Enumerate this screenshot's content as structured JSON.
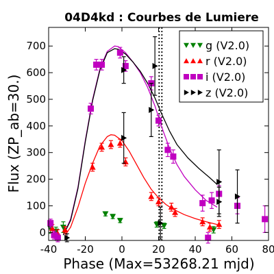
{
  "chart_data": {
    "type": "scatter",
    "title": "04D4kd : Courbes de Lumiere",
    "xlabel": "Phase (Max=53268.21 mjd)",
    "ylabel": "Flux (ZP_ab=30.)",
    "xlim": [
      -40,
      80
    ],
    "ylim": [
      -30,
      770
    ],
    "xticks": [
      -40,
      -20,
      0,
      20,
      40,
      60,
      80
    ],
    "yticks": [
      0,
      100,
      200,
      300,
      400,
      500,
      600,
      700
    ],
    "legend_position": "top-right",
    "vertical_lines": [
      {
        "x": 20.3,
        "style": "dotted",
        "color": "#000000"
      },
      {
        "x": 21.8,
        "style": "dotted",
        "color": "#000000"
      }
    ],
    "series": [
      {
        "name": "g (V2.0)",
        "marker": "triangle-down",
        "color": "#008000",
        "points": [
          {
            "x": -39,
            "y": 15,
            "err": 18
          },
          {
            "x": -36,
            "y": 5,
            "err": 15
          },
          {
            "x": -32,
            "y": 20,
            "err": 20
          },
          {
            "x": -9,
            "y": 70,
            "err": 8
          },
          {
            "x": -5,
            "y": 60,
            "err": 8
          },
          {
            "x": -1,
            "y": 45,
            "err": 8
          },
          {
            "x": 19,
            "y": 30,
            "err": 10
          },
          {
            "x": 23,
            "y": 25,
            "err": 10
          },
          {
            "x": 50,
            "y": 10,
            "err": 12
          }
        ],
        "curve": []
      },
      {
        "name": "r (V2.0)",
        "marker": "triangle-up",
        "color": "#ff0000",
        "points": [
          {
            "x": -38,
            "y": 15,
            "err": 15
          },
          {
            "x": -35,
            "y": -5,
            "err": 15
          },
          {
            "x": -31,
            "y": 10,
            "err": 12
          },
          {
            "x": -16,
            "y": 245,
            "err": 15
          },
          {
            "x": -11,
            "y": 320,
            "err": 15
          },
          {
            "x": -6,
            "y": 330,
            "err": 15
          },
          {
            "x": -1,
            "y": 335,
            "err": 15
          },
          {
            "x": 2,
            "y": 265,
            "err": 15
          },
          {
            "x": 16,
            "y": 135,
            "err": 15
          },
          {
            "x": 20,
            "y": 115,
            "err": 15
          },
          {
            "x": 27,
            "y": 95,
            "err": 15
          },
          {
            "x": 29,
            "y": 75,
            "err": 15
          },
          {
            "x": 44,
            "y": 40,
            "err": 15
          },
          {
            "x": 48,
            "y": 20,
            "err": 15
          },
          {
            "x": 53,
            "y": 30,
            "err": 15
          }
        ],
        "curve": [
          {
            "x": -31,
            "y": -10
          },
          {
            "x": -28,
            "y": 20
          },
          {
            "x": -24,
            "y": 95
          },
          {
            "x": -20,
            "y": 185
          },
          {
            "x": -16,
            "y": 260
          },
          {
            "x": -12,
            "y": 325
          },
          {
            "x": -8,
            "y": 360
          },
          {
            "x": -6,
            "y": 367
          },
          {
            "x": -4,
            "y": 365
          },
          {
            "x": 0,
            "y": 345
          },
          {
            "x": 4,
            "y": 305
          },
          {
            "x": 8,
            "y": 255
          },
          {
            "x": 12,
            "y": 205
          },
          {
            "x": 16,
            "y": 162
          },
          {
            "x": 20,
            "y": 130
          },
          {
            "x": 24,
            "y": 105
          },
          {
            "x": 28,
            "y": 87
          },
          {
            "x": 34,
            "y": 67
          },
          {
            "x": 40,
            "y": 52
          },
          {
            "x": 46,
            "y": 40
          },
          {
            "x": 52,
            "y": 30
          }
        ]
      },
      {
        "name": "i (V2.0)",
        "marker": "square",
        "color": "#c000c0",
        "points": [
          {
            "x": -39,
            "y": 35,
            "err": 15
          },
          {
            "x": -37,
            "y": -10,
            "err": 15
          },
          {
            "x": -35,
            "y": -20,
            "err": 15
          },
          {
            "x": -17,
            "y": 465,
            "err": 20
          },
          {
            "x": -14,
            "y": 630,
            "err": 20
          },
          {
            "x": -11,
            "y": 630,
            "err": 20
          },
          {
            "x": -1,
            "y": 675,
            "err": 20
          },
          {
            "x": 2,
            "y": 625,
            "err": 20
          },
          {
            "x": 16,
            "y": 560,
            "err": 25
          },
          {
            "x": 20,
            "y": 420,
            "err": 20
          },
          {
            "x": 25,
            "y": 310,
            "err": 25
          },
          {
            "x": 28,
            "y": 285,
            "err": 25
          },
          {
            "x": 44,
            "y": 110,
            "err": 30
          },
          {
            "x": 49,
            "y": 120,
            "err": 30
          },
          {
            "x": 53,
            "y": 145,
            "err": 30
          },
          {
            "x": 47,
            "y": -20,
            "err": 20
          },
          {
            "x": 63,
            "y": 100,
            "err": 30
          },
          {
            "x": 78,
            "y": 50,
            "err": 50
          }
        ],
        "curve": [
          {
            "x": -32,
            "y": -10
          },
          {
            "x": -28,
            "y": 50
          },
          {
            "x": -24,
            "y": 170
          },
          {
            "x": -20,
            "y": 345
          },
          {
            "x": -16,
            "y": 500
          },
          {
            "x": -12,
            "y": 615
          },
          {
            "x": -8,
            "y": 680
          },
          {
            "x": -4,
            "y": 700
          },
          {
            "x": -2,
            "y": 698
          },
          {
            "x": 2,
            "y": 675
          },
          {
            "x": 6,
            "y": 640
          },
          {
            "x": 10,
            "y": 600
          },
          {
            "x": 14,
            "y": 545
          },
          {
            "x": 18,
            "y": 475
          },
          {
            "x": 22,
            "y": 390
          },
          {
            "x": 26,
            "y": 315
          },
          {
            "x": 30,
            "y": 255
          },
          {
            "x": 34,
            "y": 210
          },
          {
            "x": 40,
            "y": 160
          },
          {
            "x": 46,
            "y": 120
          },
          {
            "x": 52,
            "y": 95
          }
        ]
      },
      {
        "name": "z (V2.0)",
        "marker": "triangle-right",
        "color": "#000000",
        "points": [
          {
            "x": -30,
            "y": -20,
            "err": 15
          },
          {
            "x": 1,
            "y": 355,
            "err": 95
          },
          {
            "x": 1,
            "y": 610,
            "err": 50
          },
          {
            "x": 16,
            "y": 460,
            "err": 100
          },
          {
            "x": 18,
            "y": 625,
            "err": 110
          },
          {
            "x": 21,
            "y": 35,
            "err": 60
          },
          {
            "x": 53,
            "y": 190,
            "err": 120
          },
          {
            "x": 53,
            "y": 115,
            "err": 55
          },
          {
            "x": 63,
            "y": 135,
            "err": 100
          }
        ],
        "curve": [
          {
            "x": -32,
            "y": -10
          },
          {
            "x": -28,
            "y": 45
          },
          {
            "x": -24,
            "y": 165
          },
          {
            "x": -20,
            "y": 340
          },
          {
            "x": -16,
            "y": 495
          },
          {
            "x": -12,
            "y": 610
          },
          {
            "x": -8,
            "y": 675
          },
          {
            "x": -4,
            "y": 690
          },
          {
            "x": -2,
            "y": 688
          },
          {
            "x": 2,
            "y": 670
          },
          {
            "x": 6,
            "y": 640
          },
          {
            "x": 10,
            "y": 605
          },
          {
            "x": 14,
            "y": 560
          },
          {
            "x": 18,
            "y": 505
          },
          {
            "x": 22,
            "y": 440
          },
          {
            "x": 26,
            "y": 380
          },
          {
            "x": 30,
            "y": 330
          },
          {
            "x": 36,
            "y": 280
          },
          {
            "x": 42,
            "y": 240
          },
          {
            "x": 48,
            "y": 205
          },
          {
            "x": 52,
            "y": 180
          }
        ]
      }
    ]
  }
}
